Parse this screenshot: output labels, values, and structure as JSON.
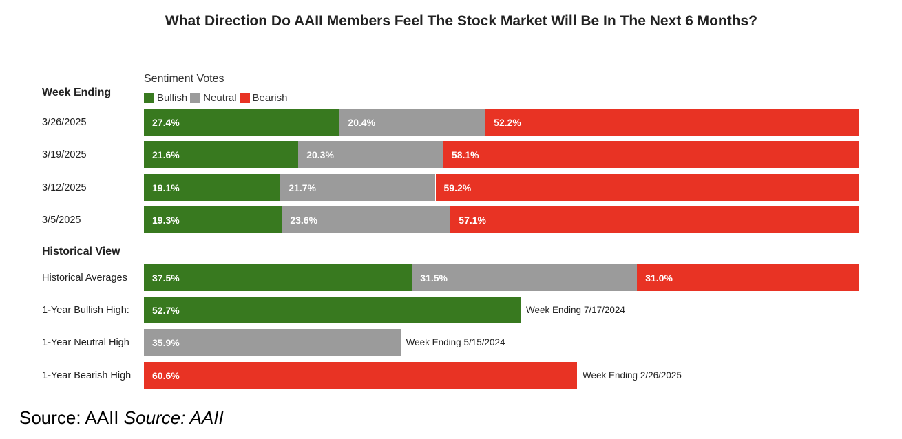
{
  "chart_data": {
    "type": "bar",
    "orientation": "horizontal",
    "stacked": true,
    "title": "What Direction Do AAII Members Feel The Stock Market Will Be In The Next 6 Months?",
    "legend_title": "Sentiment Votes",
    "legend_placement": "top-left",
    "series_names": [
      "Bullish",
      "Neutral",
      "Bearish"
    ],
    "colors": {
      "Bullish": "#38791f",
      "Neutral": "#9b9b9b",
      "Bearish": "#e83324"
    },
    "weekly_heading": "Week Ending",
    "weekly": [
      {
        "label": "3/26/2025",
        "bullish": 27.4,
        "neutral": 20.4,
        "bearish": 52.2,
        "bullish_text": "27.4%",
        "neutral_text": "20.4%",
        "bearish_text": "52.2%"
      },
      {
        "label": "3/19/2025",
        "bullish": 21.6,
        "neutral": 20.3,
        "bearish": 58.1,
        "bullish_text": "21.6%",
        "neutral_text": "20.3%",
        "bearish_text": "58.1%"
      },
      {
        "label": "3/12/2025",
        "bullish": 19.1,
        "neutral": 21.7,
        "bearish": 59.2,
        "bullish_text": "19.1%",
        "neutral_text": "21.7%",
        "bearish_text": "59.2%"
      },
      {
        "label": "3/5/2025",
        "bullish": 19.3,
        "neutral": 23.6,
        "bearish": 57.1,
        "bullish_text": "19.3%",
        "neutral_text": "23.6%",
        "bearish_text": "57.1%"
      }
    ],
    "historical_heading": "Historical View",
    "historical_averages": {
      "label": "Historical Averages",
      "bullish": 37.5,
      "neutral": 31.5,
      "bearish": 31.0,
      "bullish_text": "37.5%",
      "neutral_text": "31.5%",
      "bearish_text": "31.0%"
    },
    "highs": [
      {
        "label": "1-Year Bullish High:",
        "series": "Bullish",
        "value": 52.7,
        "value_text": "52.7%",
        "note": "Week Ending 7/17/2024"
      },
      {
        "label": "1-Year Neutral High",
        "series": "Neutral",
        "value": 35.9,
        "value_text": "35.9%",
        "note": "Week Ending 5/15/2024"
      },
      {
        "label": "1-Year Bearish High",
        "series": "Bearish",
        "value": 60.6,
        "value_text": "60.6%",
        "note": "Week Ending 2/26/2025"
      }
    ],
    "xlim": [
      0,
      100
    ]
  },
  "source_text": "Source: AAII",
  "source_italic_text": "Source: AAII"
}
